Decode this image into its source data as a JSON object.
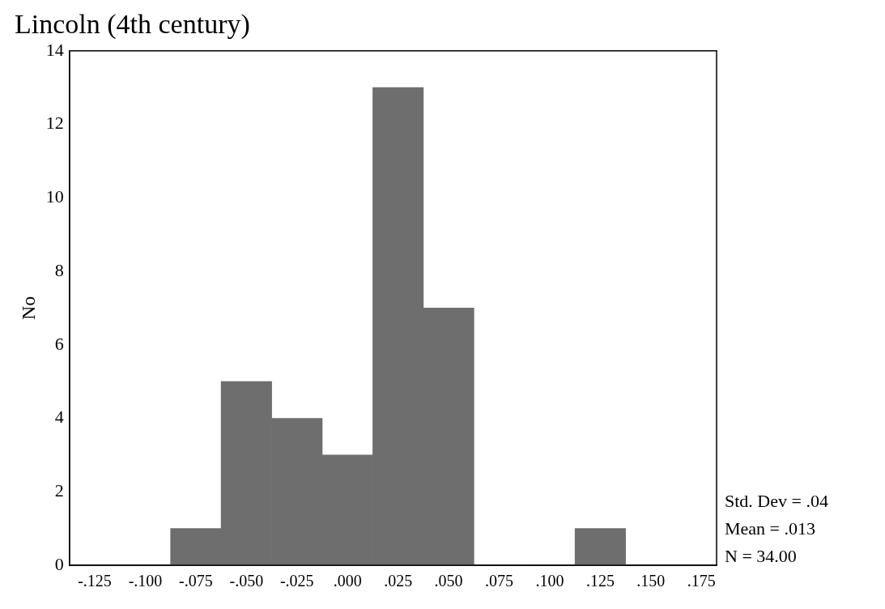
{
  "chart_data": {
    "type": "histogram",
    "title": "Lincoln (4th century)",
    "ylabel": "No",
    "bins": [
      -0.0875,
      -0.0625,
      -0.0375,
      -0.0125,
      0.0125,
      0.0375,
      0.0625,
      0.0875,
      0.1125,
      0.1375
    ],
    "values": [
      1,
      5,
      4,
      3,
      13,
      7,
      0,
      0,
      1
    ],
    "color": "#6e6e6e",
    "xlim": [
      -0.1375,
      0.1825
    ],
    "xticks": [
      {
        "value": -0.125,
        "label": "-.125"
      },
      {
        "value": -0.1,
        "label": "-.100"
      },
      {
        "value": -0.075,
        "label": "-.075"
      },
      {
        "value": -0.05,
        "label": "-.050"
      },
      {
        "value": -0.025,
        "label": "-.025"
      },
      {
        "value": 0,
        "label": ".000"
      },
      {
        "value": 0.025,
        "label": ".025"
      },
      {
        "value": 0.05,
        "label": ".050"
      },
      {
        "value": 0.075,
        "label": ".075"
      },
      {
        "value": 0.1,
        "label": ".100"
      },
      {
        "value": 0.125,
        "label": ".125"
      },
      {
        "value": 0.15,
        "label": ".150"
      },
      {
        "value": 0.175,
        "label": ".175"
      }
    ],
    "ylim": [
      0,
      14
    ],
    "yticks": [
      0,
      2,
      4,
      6,
      8,
      10,
      12,
      14
    ],
    "grid": false,
    "legend": false,
    "annotations": [
      "Std. Dev = .04",
      "Mean = .013",
      "N = 34.00"
    ]
  }
}
